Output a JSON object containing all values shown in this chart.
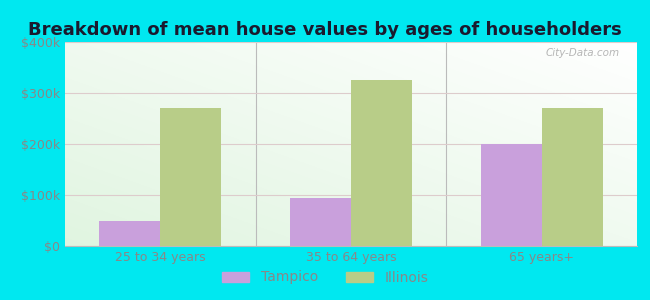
{
  "title": "Breakdown of mean house values by ages of householders",
  "categories": [
    "25 to 34 years",
    "35 to 64 years",
    "65 years+"
  ],
  "tampico_values": [
    50000,
    95000,
    200000
  ],
  "illinois_values": [
    270000,
    325000,
    270000
  ],
  "tampico_color": "#c9a0dc",
  "illinois_color": "#b8cd88",
  "ylim": [
    0,
    400000
  ],
  "yticks": [
    0,
    100000,
    200000,
    300000,
    400000
  ],
  "ytick_labels": [
    "$0",
    "$100k",
    "$200k",
    "$300k",
    "$400k"
  ],
  "background_color": "#00e8f0",
  "legend_labels": [
    "Tampico",
    "Illinois"
  ],
  "title_fontsize": 13,
  "tick_fontsize": 9,
  "legend_fontsize": 10,
  "bar_width": 0.32,
  "watermark": "City-Data.com",
  "title_color": "#1a1a2e",
  "tick_color": "#888888",
  "grid_color": "#ddcccc",
  "separator_color": "#bbbbbb"
}
